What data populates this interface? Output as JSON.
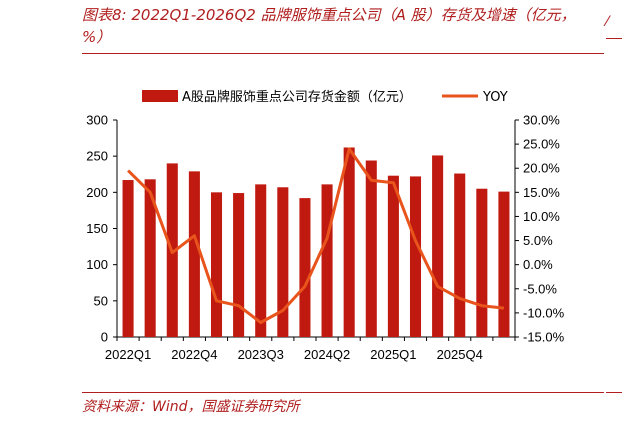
{
  "header": {
    "title": "图表8:  2022Q1-2026Q2 品牌服饰重点公司（A 股）存货及增速（亿元，%）"
  },
  "footer": {
    "source": "资料来源：Wind，国盛证券研究所"
  },
  "colors": {
    "bar": "#c0190f",
    "line": "#e8541c",
    "accent": "#b01e1e"
  },
  "chart_data": {
    "type": "bar",
    "categories": [
      "2022Q1",
      "2022Q2",
      "2022Q3",
      "2022Q4",
      "2023Q1",
      "2023Q2",
      "2023Q3",
      "2023Q4",
      "2024Q1",
      "2024Q2",
      "2024Q3",
      "2024Q4",
      "2025Q1",
      "2025Q2",
      "2025Q3",
      "2025Q4",
      "2026Q1",
      "2026Q2"
    ],
    "x_tick_labels": [
      "2022Q1",
      "2022Q4",
      "2023Q3",
      "2024Q2",
      "2025Q1",
      "2025Q4"
    ],
    "series": [
      {
        "name": "A股品牌服饰重点公司存货金额（亿元）",
        "type": "bar",
        "axis": "left",
        "values": [
          217,
          218,
          240,
          229,
          200,
          199,
          211,
          207,
          192,
          211,
          262,
          244,
          223,
          222,
          251,
          226,
          205,
          201
        ]
      },
      {
        "name": "YOY",
        "type": "line",
        "axis": "right",
        "values": [
          19.5,
          15.0,
          2.5,
          6.0,
          -7.5,
          -8.5,
          -12.0,
          -9.5,
          -4.5,
          5.5,
          24.0,
          17.5,
          17.0,
          5.0,
          -4.5,
          -7.0,
          -8.5,
          -9.0
        ]
      }
    ],
    "y_left": {
      "min": 0,
      "max": 300,
      "ticks": [
        "0",
        "50",
        "100",
        "150",
        "200",
        "250",
        "300"
      ]
    },
    "y_right": {
      "min": -15,
      "max": 30,
      "ticks": [
        "-15.0%",
        "-10.0%",
        "-5.0%",
        "0.0%",
        "5.0%",
        "10.0%",
        "15.0%",
        "20.0%",
        "25.0%",
        "30.0%"
      ]
    },
    "legend_position": "top",
    "grid": false
  }
}
